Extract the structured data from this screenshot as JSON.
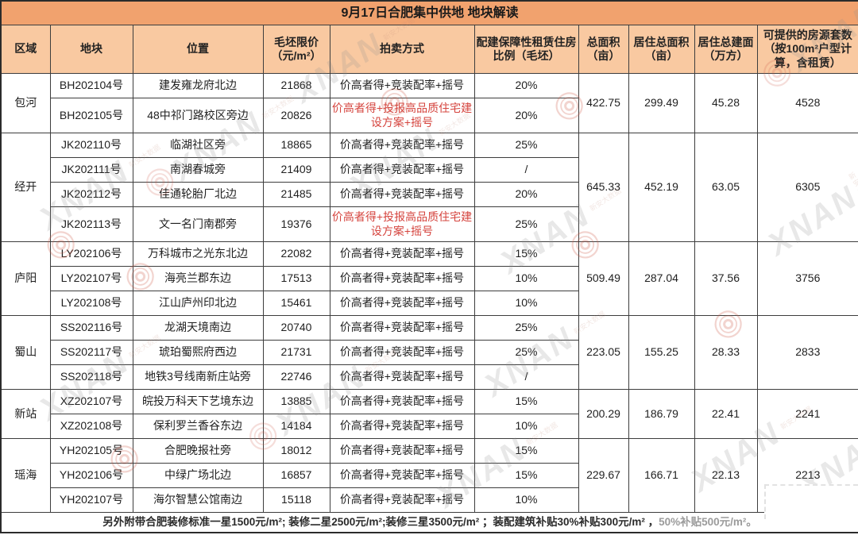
{
  "title": "9月17日合肥集中供地 地块解读",
  "footer": {
    "main": "另外附带合肥装修标准一星1500元/m²; 装修二星2500元/m²;装修三星3500元/m² ；装配建筑补贴30%补贴300元/m² ，",
    "faded": "50%补贴500元/m²。"
  },
  "watermark": {
    "text": "XNAN",
    "subtext": "新安大数据",
    "seal_icon": "spiral-seal-icon"
  },
  "colors": {
    "title_bg": "#F1A26E",
    "header_bg": "#F9C9A1",
    "border": "#3d3d3d",
    "red_text": "#D5443E",
    "seal_red": "#cf5c49"
  },
  "table": {
    "headers": [
      "区域",
      "地块",
      "位置",
      "毛坯限价（元/m²）",
      "拍卖方式",
      "配建保障性租赁住房比例（毛坯）",
      "总面积（亩）",
      "居住总面积（亩）",
      "居住总建面（万方）",
      "可提供的房源套数（按100m²户型计算，含租赁）"
    ],
    "regions": [
      {
        "name": "包河",
        "parcels": [
          {
            "id": "BH202104号",
            "location": "建发雍龙府北边",
            "price": "21868",
            "auction": "价高者得+竞装配率+摇号",
            "auction_red": false,
            "ratio": "20%",
            "tall": false
          },
          {
            "id": "BH202105号",
            "location": "48中祁门路校区旁边",
            "price": "20826",
            "auction": "价高者得+投报高品质住宅建设方案+摇号",
            "auction_red": true,
            "ratio": "20%",
            "tall": true
          }
        ],
        "totals": {
          "total_area": "422.75",
          "residential_area": "299.49",
          "residential_build": "45.28",
          "units": "4528"
        }
      },
      {
        "name": "经开",
        "parcels": [
          {
            "id": "JK202110号",
            "location": "临湖社区旁",
            "price": "18865",
            "auction": "价高者得+竞装配率+摇号",
            "auction_red": false,
            "ratio": "25%",
            "tall": false
          },
          {
            "id": "JK202111号",
            "location": "南湖春城旁",
            "price": "21409",
            "auction": "价高者得+竞装配率+摇号",
            "auction_red": false,
            "ratio": "/",
            "tall": false
          },
          {
            "id": "JK202112号",
            "location": "佳通轮胎厂北边",
            "price": "21485",
            "auction": "价高者得+竞装配率+摇号",
            "auction_red": false,
            "ratio": "20%",
            "tall": false
          },
          {
            "id": "JK202113号",
            "location": "文一名门南郡旁",
            "price": "19376",
            "auction": "价高者得+投报高品质住宅建设方案+摇号",
            "auction_red": true,
            "ratio": "25%",
            "tall": true
          }
        ],
        "totals": {
          "total_area": "645.33",
          "residential_area": "452.19",
          "residential_build": "63.05",
          "units": "6305"
        }
      },
      {
        "name": "庐阳",
        "parcels": [
          {
            "id": "LY202106号",
            "location": "万科城市之光东北边",
            "price": "22082",
            "auction": "价高者得+竞装配率+摇号",
            "auction_red": false,
            "ratio": "15%",
            "tall": false
          },
          {
            "id": "LY202107号",
            "location": "海亮兰郡东边",
            "price": "17513",
            "auction": "价高者得+竞装配率+摇号",
            "auction_red": false,
            "ratio": "10%",
            "tall": false
          },
          {
            "id": "LY202108号",
            "location": "江山庐州印北边",
            "price": "15461",
            "auction": "价高者得+竞装配率+摇号",
            "auction_red": false,
            "ratio": "10%",
            "tall": false
          }
        ],
        "totals": {
          "total_area": "509.49",
          "residential_area": "287.04",
          "residential_build": "37.56",
          "units": "3756"
        }
      },
      {
        "name": "蜀山",
        "parcels": [
          {
            "id": "SS202116号",
            "location": "龙湖天境南边",
            "price": "20740",
            "auction": "价高者得+竞装配率+摇号",
            "auction_red": false,
            "ratio": "25%",
            "tall": false
          },
          {
            "id": "SS202117号",
            "location": "琥珀蜀熙府西边",
            "price": "21731",
            "auction": "价高者得+竞装配率+摇号",
            "auction_red": false,
            "ratio": "25%",
            "tall": false
          },
          {
            "id": "SS202118号",
            "location": "地铁3号线南新庄站旁",
            "price": "22746",
            "auction": "价高者得+竞装配率+摇号",
            "auction_red": false,
            "ratio": "/",
            "tall": false
          }
        ],
        "totals": {
          "total_area": "223.05",
          "residential_area": "155.25",
          "residential_build": "28.33",
          "units": "2833"
        }
      },
      {
        "name": "新站",
        "parcels": [
          {
            "id": "XZ202107号",
            "location": "皖投万科天下艺境东边",
            "price": "13885",
            "auction": "价高者得+竞装配率+摇号",
            "auction_red": false,
            "ratio": "15%",
            "tall": false
          },
          {
            "id": "XZ202108号",
            "location": "保利罗兰香谷东边",
            "price": "14184",
            "auction": "价高者得+竞装配率+摇号",
            "auction_red": false,
            "ratio": "10%",
            "tall": false
          }
        ],
        "totals": {
          "total_area": "200.29",
          "residential_area": "186.79",
          "residential_build": "22.41",
          "units": "2241"
        }
      },
      {
        "name": "瑶海",
        "parcels": [
          {
            "id": "YH202105号",
            "location": "合肥晚报社旁",
            "price": "18012",
            "auction": "价高者得+竞装配率+摇号",
            "auction_red": false,
            "ratio": "15%",
            "tall": false
          },
          {
            "id": "YH202106号",
            "location": "中绿广场北边",
            "price": "16857",
            "auction": "价高者得+竞装配率+摇号",
            "auction_red": false,
            "ratio": "15%",
            "tall": false
          },
          {
            "id": "YH202107号",
            "location": "海尔智慧公馆南边",
            "price": "15118",
            "auction": "价高者得+竞装配率+摇号",
            "auction_red": false,
            "ratio": "10%",
            "tall": false
          }
        ],
        "totals": {
          "total_area": "229.67",
          "residential_area": "166.71",
          "residential_build": "22.13",
          "units": "2213"
        }
      }
    ]
  }
}
